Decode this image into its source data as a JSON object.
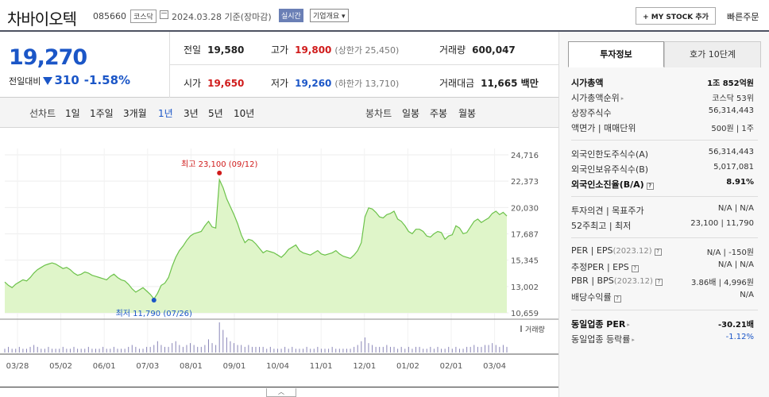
{
  "header": {
    "name": "차바이오텍",
    "code": "085660",
    "market": "코스닥",
    "date_text": "2024.03.28 기준(장마감)",
    "realtime_label": "실시간",
    "overview_label": "기업개요",
    "mystock_label": "+ MY STOCK 추가",
    "buy_label": "빠른주문"
  },
  "quote": {
    "price": "19,270",
    "change_label": "전일대비",
    "change": "310",
    "change_pct": "-1.58%",
    "prev_label": "전일",
    "prev": "19,580",
    "high_label": "고가",
    "high": "19,800",
    "upper_limit": "(상한가 25,450)",
    "volume_label": "거래량",
    "volume": "600,047",
    "open_label": "시가",
    "open": "19,650",
    "low_label": "저가",
    "low": "19,260",
    "lower_limit": "(하한가 13,710)",
    "amount_label": "거래대금",
    "amount": "11,665 백만"
  },
  "period_tabs": {
    "line_head": "선차트",
    "line_items": [
      "1일",
      "1주일",
      "3개월",
      "1년",
      "3년",
      "5년",
      "10년"
    ],
    "candle_head": "봉차트",
    "candle_items": [
      "일봉",
      "주봉",
      "월봉"
    ],
    "active": "1년"
  },
  "chart_data": {
    "type": "area",
    "y_ticks": [
      "24,716",
      "22,373",
      "20,030",
      "17,687",
      "15,345",
      "13,002",
      "10,659"
    ],
    "ylim": [
      10659,
      24716
    ],
    "x_ticks": [
      "03/28",
      "05/02",
      "06/01",
      "07/03",
      "08/01",
      "09/01",
      "10/04",
      "11/01",
      "12/01",
      "01/02",
      "02/01",
      "03/04"
    ],
    "high_annotation": "최고 23,100 (09/12)",
    "low_annotation": "최저 11,790 (07/26)",
    "high_value": 23100,
    "low_value": 11790,
    "volume_label": "거래량",
    "series": [
      {
        "values": [
          13400,
          13100,
          12900,
          13200,
          13400,
          13600,
          13500,
          13800,
          14200,
          14500,
          14700,
          14900,
          15000,
          15100,
          15000,
          14800,
          14600,
          14700,
          14500,
          14200,
          14000,
          14100,
          14300,
          14200,
          14000,
          13900,
          13800,
          13700,
          13600,
          13900,
          14100,
          13800,
          13600,
          13500,
          13200,
          12800,
          12500,
          12700,
          12900,
          12600,
          12300,
          11900,
          12400,
          13100,
          13300,
          13800,
          14800,
          15600,
          16200,
          16600,
          17100,
          17500,
          17700,
          17800,
          17900,
          18400,
          18800,
          18300,
          18200,
          22500,
          21800,
          20800,
          20100,
          19400,
          18600,
          17600,
          16900,
          17200,
          17100,
          16800,
          16400,
          16000,
          16200,
          16100,
          16000,
          15800,
          15600,
          15900,
          16300,
          16500,
          16700,
          16200,
          16000,
          15900,
          15800,
          16000,
          16200,
          15900,
          15800,
          15900,
          16000,
          16200,
          15900,
          15700,
          15600,
          15500,
          15800,
          16200,
          16900,
          19200,
          20000,
          19900,
          19600,
          19200,
          19100,
          19400,
          19500,
          19700,
          19000,
          18800,
          18400,
          17900,
          17700,
          18100,
          18100,
          17900,
          17500,
          17400,
          17700,
          17900,
          17800,
          17200,
          17500,
          17600,
          18400,
          18200,
          17700,
          17800,
          18300,
          18800,
          19000,
          18700,
          18900,
          19100,
          19500,
          19700,
          19400,
          19600,
          19270
        ],
        "volume": [
          2,
          3,
          2,
          2,
          3,
          2,
          2,
          3,
          4,
          3,
          2,
          2,
          3,
          2,
          2,
          2,
          3,
          2,
          2,
          3,
          2,
          2,
          2,
          3,
          2,
          2,
          2,
          3,
          2,
          2,
          3,
          2,
          2,
          2,
          3,
          4,
          3,
          2,
          2,
          3,
          3,
          4,
          6,
          4,
          3,
          3,
          5,
          6,
          4,
          3,
          4,
          5,
          4,
          3,
          3,
          4,
          7,
          5,
          4,
          16,
          12,
          8,
          6,
          5,
          4,
          4,
          3,
          4,
          3,
          3,
          3,
          3,
          2,
          3,
          2,
          2,
          2,
          3,
          2,
          3,
          2,
          2,
          2,
          3,
          2,
          2,
          3,
          2,
          2,
          2,
          3,
          2,
          2,
          2,
          2,
          2,
          3,
          4,
          6,
          8,
          5,
          4,
          3,
          3,
          3,
          4,
          3,
          3,
          2,
          3,
          2,
          3,
          2,
          3,
          3,
          2,
          2,
          3,
          2,
          3,
          2,
          2,
          3,
          2,
          3,
          2,
          2,
          3,
          3,
          4,
          3,
          3,
          4,
          4,
          5,
          4,
          3,
          4,
          3
        ]
      }
    ]
  },
  "panel": {
    "tab_invest": "투자정보",
    "tab_hoga": "호가 10단계",
    "rows1": [
      {
        "label": "시가총액",
        "value": "1조 852억원"
      },
      {
        "label": "시가총액순위",
        "value": "코스닥 53위"
      },
      {
        "label": "상장주식수",
        "value": "56,314,443"
      },
      {
        "label": "액면가 | 매매단위",
        "value": "500원 | 1주"
      }
    ],
    "rows2": [
      {
        "label": "외국인한도주식수(A)",
        "value": "56,314,443"
      },
      {
        "label": "외국인보유주식수(B)",
        "value": "5,017,081"
      },
      {
        "label": "외국인소진율(B/A)",
        "value": "8.91%"
      }
    ],
    "rows3": [
      {
        "label": "투자의견 | 목표주가",
        "value": "N/A | N/A"
      },
      {
        "label": "52주최고 | 최저",
        "value": "23,100 | 11,790"
      }
    ],
    "rows4": [
      {
        "label": "PER | EPS",
        "note": "(2023.12)",
        "value": "N/A | -150원"
      },
      {
        "label": "추정PER | EPS",
        "value": "N/A | N/A"
      },
      {
        "label": "PBR | BPS",
        "note": "(2023.12)",
        "value": "3.86배 | 4,996원"
      },
      {
        "label": "배당수익률",
        "value": "N/A"
      }
    ],
    "rows5": [
      {
        "label": "동일업종 PER",
        "value": "-30.21배"
      },
      {
        "label": "동일업종 등락률",
        "value": "-1.12%"
      }
    ],
    "info_icon": "info-box-icon"
  },
  "colors": {
    "up": "#d01b1b",
    "down": "#1b56c7",
    "line": "#6cc24a",
    "area": "#dff5c9"
  }
}
